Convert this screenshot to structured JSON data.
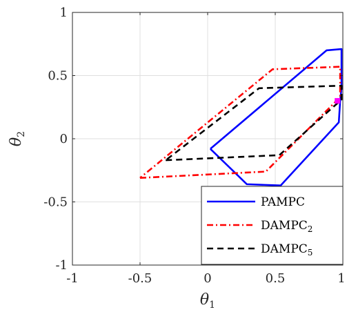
{
  "chart_data": {
    "type": "line",
    "xlabel": "θ",
    "xlabel_sub": "1",
    "ylabel": "θ",
    "ylabel_sub": "2",
    "xlim": [
      -1,
      1
    ],
    "ylim": [
      -1,
      1
    ],
    "xticks": [
      -1,
      -0.5,
      0,
      0.5,
      1
    ],
    "xtick_labels": [
      "-1",
      "-0.5",
      "0",
      "0.5",
      "1"
    ],
    "yticks": [
      -1,
      -0.5,
      0,
      0.5,
      1
    ],
    "ytick_labels": [
      "-1",
      "-0.5",
      "0",
      "0.5",
      "1"
    ],
    "grid": true,
    "legend_position": "bottom-right",
    "series": [
      {
        "name": "PAMPC",
        "color": "#0000ff",
        "style": "solid",
        "points": [
          [
            0.02,
            -0.08
          ],
          [
            0.88,
            0.7
          ],
          [
            0.99,
            0.71
          ],
          [
            0.99,
            0.4
          ],
          [
            0.98,
            0.3
          ],
          [
            0.97,
            0.13
          ],
          [
            0.54,
            -0.37
          ],
          [
            0.29,
            -0.36
          ],
          [
            0.02,
            -0.08
          ]
        ]
      },
      {
        "name": "DAMPC",
        "name_sub": "2",
        "color": "#ff0000",
        "style": "dashdot",
        "points": [
          [
            -0.5,
            -0.31
          ],
          [
            0.43,
            -0.26
          ],
          [
            0.98,
            0.33
          ],
          [
            0.98,
            0.57
          ],
          [
            0.48,
            0.55
          ],
          [
            -0.5,
            -0.31
          ]
        ]
      },
      {
        "name": "DAMPC",
        "name_sub": "5",
        "color": "#000000",
        "style": "dashed",
        "points": [
          [
            -0.31,
            -0.17
          ],
          [
            0.53,
            -0.13
          ],
          [
            0.99,
            0.31
          ],
          [
            0.99,
            0.42
          ],
          [
            0.38,
            0.4
          ],
          [
            -0.31,
            -0.17
          ]
        ]
      }
    ],
    "marker": {
      "x": 0.96,
      "y": 0.3,
      "color": "#ff00ff"
    }
  }
}
